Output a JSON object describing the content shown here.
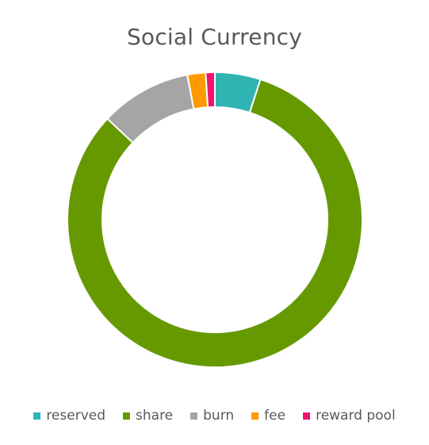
{
  "chart_data": {
    "type": "pie",
    "title": "Social Currency",
    "categories": [
      "reserved",
      "share",
      "burn",
      "fee",
      "reward pool"
    ],
    "values": [
      5,
      82,
      10,
      2,
      1
    ],
    "unit": "%",
    "donut": true,
    "legend_position": "bottom",
    "colors": [
      "#2FB3B3",
      "#669900",
      "#A5A5A5",
      "#FF9900",
      "#F0146E"
    ]
  }
}
